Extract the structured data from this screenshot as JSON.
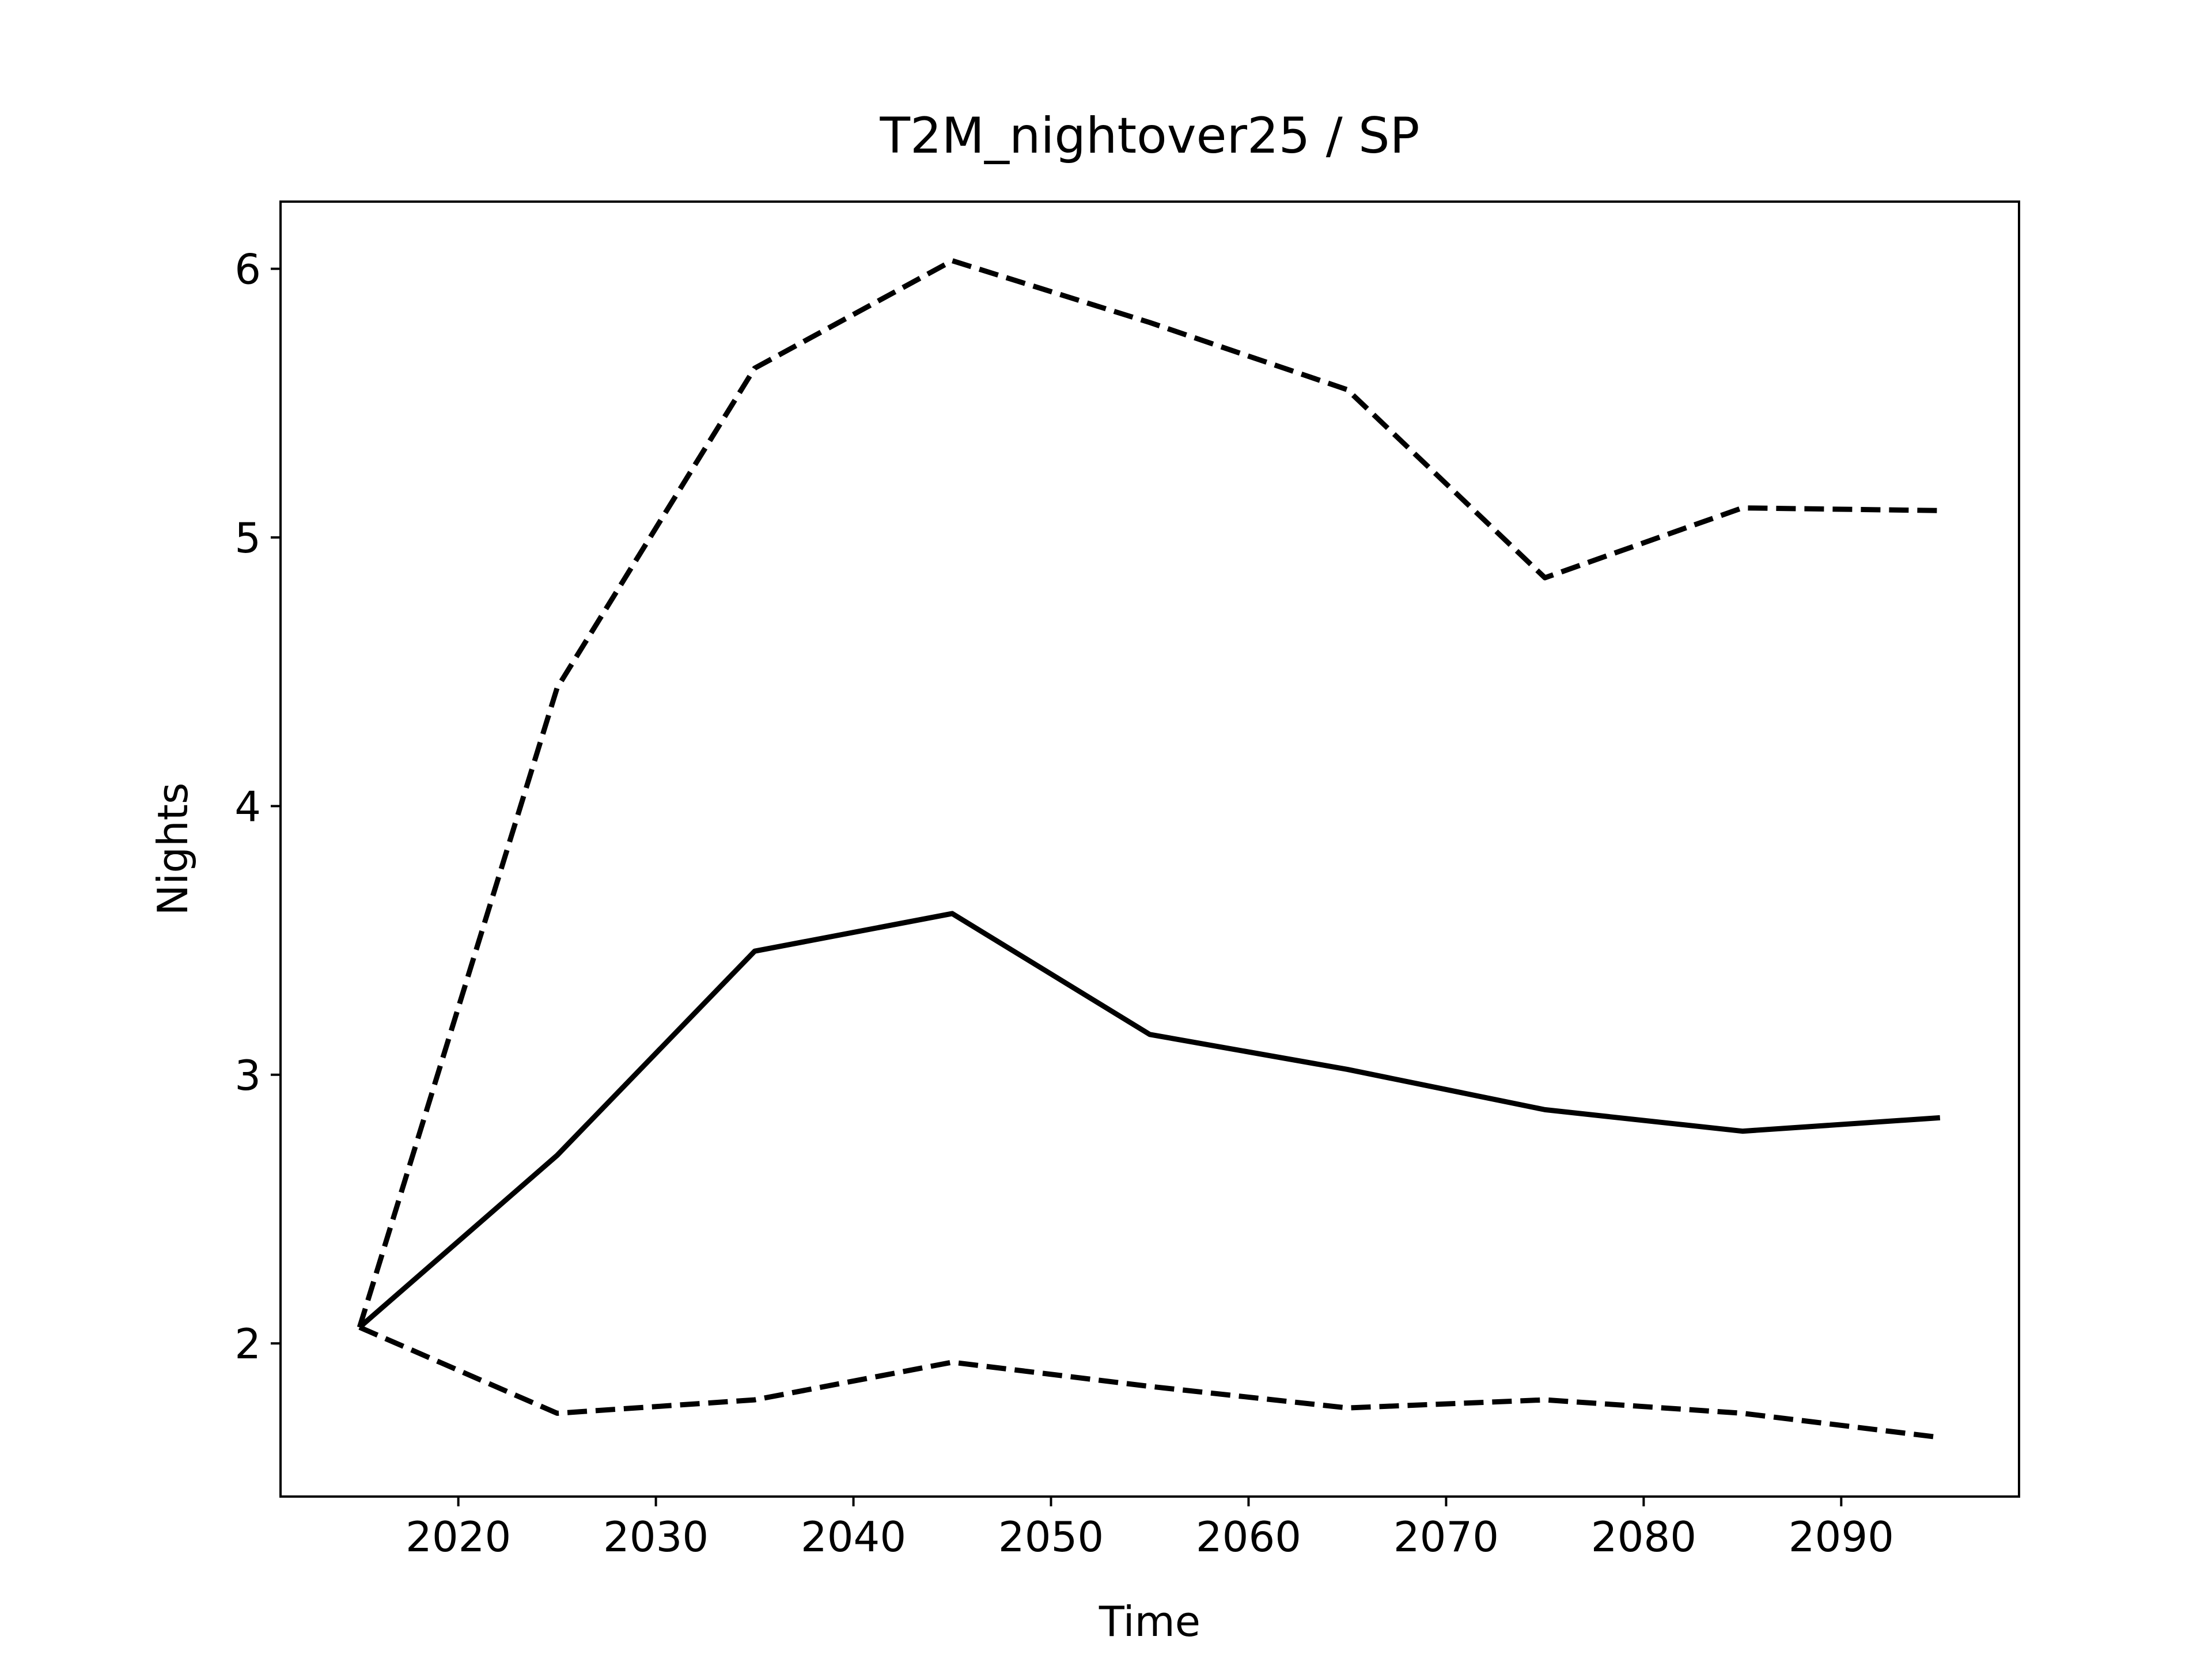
{
  "chart_data": {
    "type": "line",
    "title": "T2M_nightover25 / SP",
    "x_label": "Time",
    "y_label": "Nights",
    "x": [
      2015,
      2025,
      2035,
      2045,
      2055,
      2065,
      2075,
      2085,
      2095
    ],
    "series": [
      {
        "color": "#000000",
        "dashed": false,
        "values": [
          2.06,
          2.7,
          3.46,
          3.6,
          3.15,
          3.02,
          2.87,
          2.79,
          2.84
        ]
      },
      {
        "color": "#000000",
        "dashed": true,
        "values": [
          2.06,
          4.44,
          5.63,
          6.03,
          5.8,
          5.55,
          4.85,
          5.11,
          5.1
        ]
      },
      {
        "color": "#000000",
        "dashed": true,
        "values": [
          2.06,
          1.74,
          1.79,
          1.93,
          1.84,
          1.76,
          1.79,
          1.74,
          1.65
        ]
      }
    ],
    "xlim": [
      2011,
      2099
    ],
    "ylim": [
      1.43,
      6.25
    ],
    "xticks": [
      2020,
      2030,
      2040,
      2050,
      2060,
      2070,
      2080,
      2090
    ],
    "yticks": [
      2,
      3,
      4,
      5,
      6
    ],
    "grid": false
  }
}
